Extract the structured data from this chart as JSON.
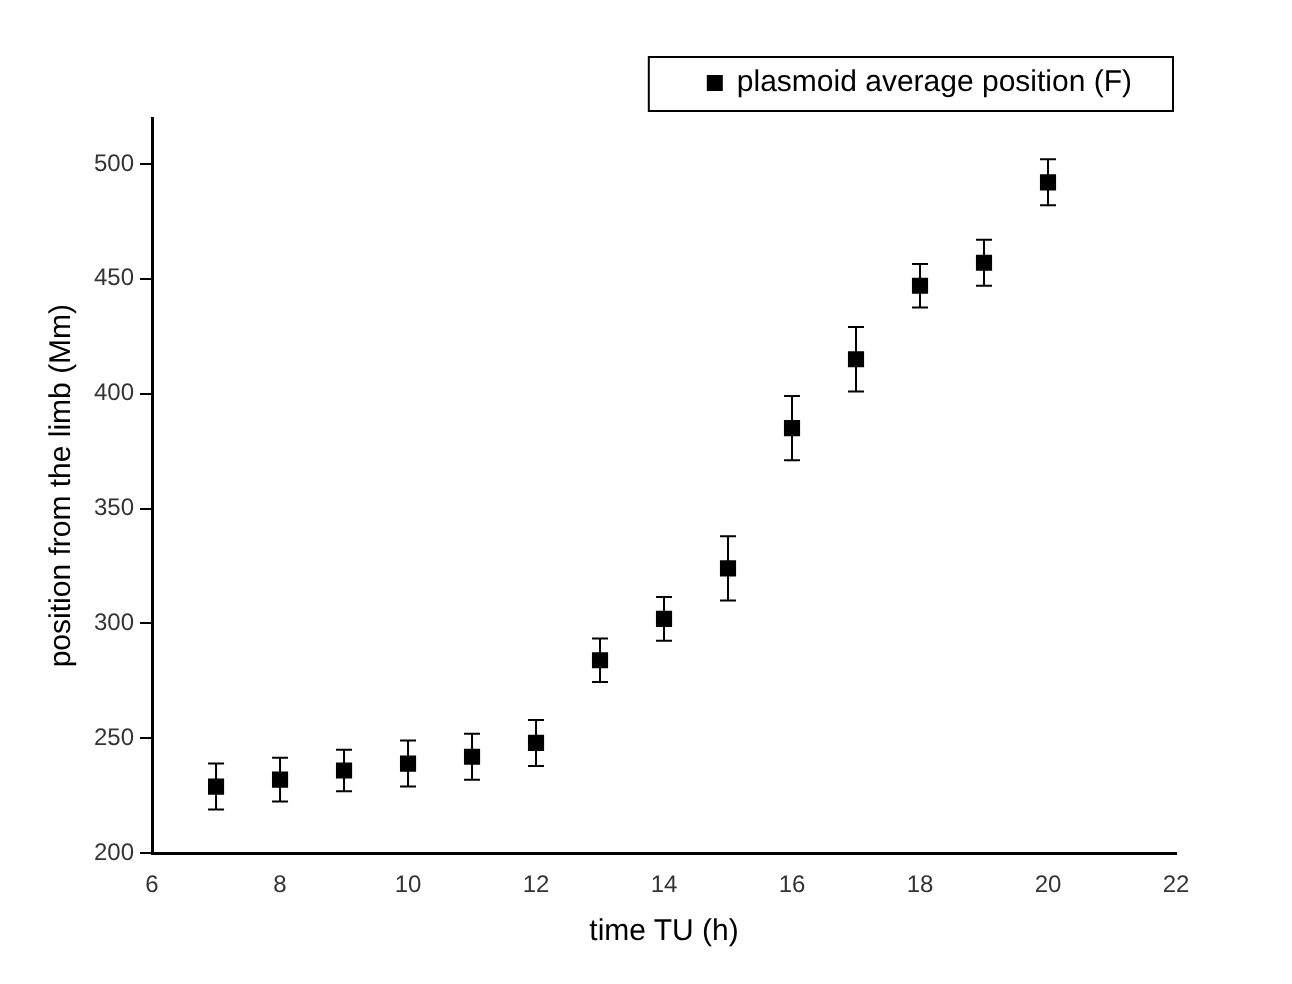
{
  "chart_data": {
    "type": "scatter",
    "xlabel": "time TU (h)",
    "ylabel": "position from the limb (Mm)",
    "x": [
      7,
      8,
      9,
      10,
      11,
      12,
      13,
      14,
      15,
      16,
      17,
      18,
      19,
      20
    ],
    "series": [
      {
        "name": "plasmoid average position (F)",
        "color": "#000000",
        "values": [
          229,
          232,
          236,
          239,
          242,
          248,
          284,
          302,
          324,
          385,
          415,
          447,
          457,
          492
        ],
        "errors": [
          10,
          9.5,
          9,
          10,
          10,
          10,
          9.5,
          9.5,
          14,
          14,
          14,
          9.5,
          10,
          10
        ]
      }
    ],
    "xlim": [
      6,
      22
    ],
    "xticks": [
      6,
      8,
      10,
      12,
      14,
      16,
      18,
      20,
      22
    ],
    "ylim": [
      200,
      520
    ],
    "yticks": [
      200,
      250,
      300,
      350,
      400,
      450,
      500
    ],
    "marker": "square",
    "grid": false,
    "legend": "top right"
  }
}
